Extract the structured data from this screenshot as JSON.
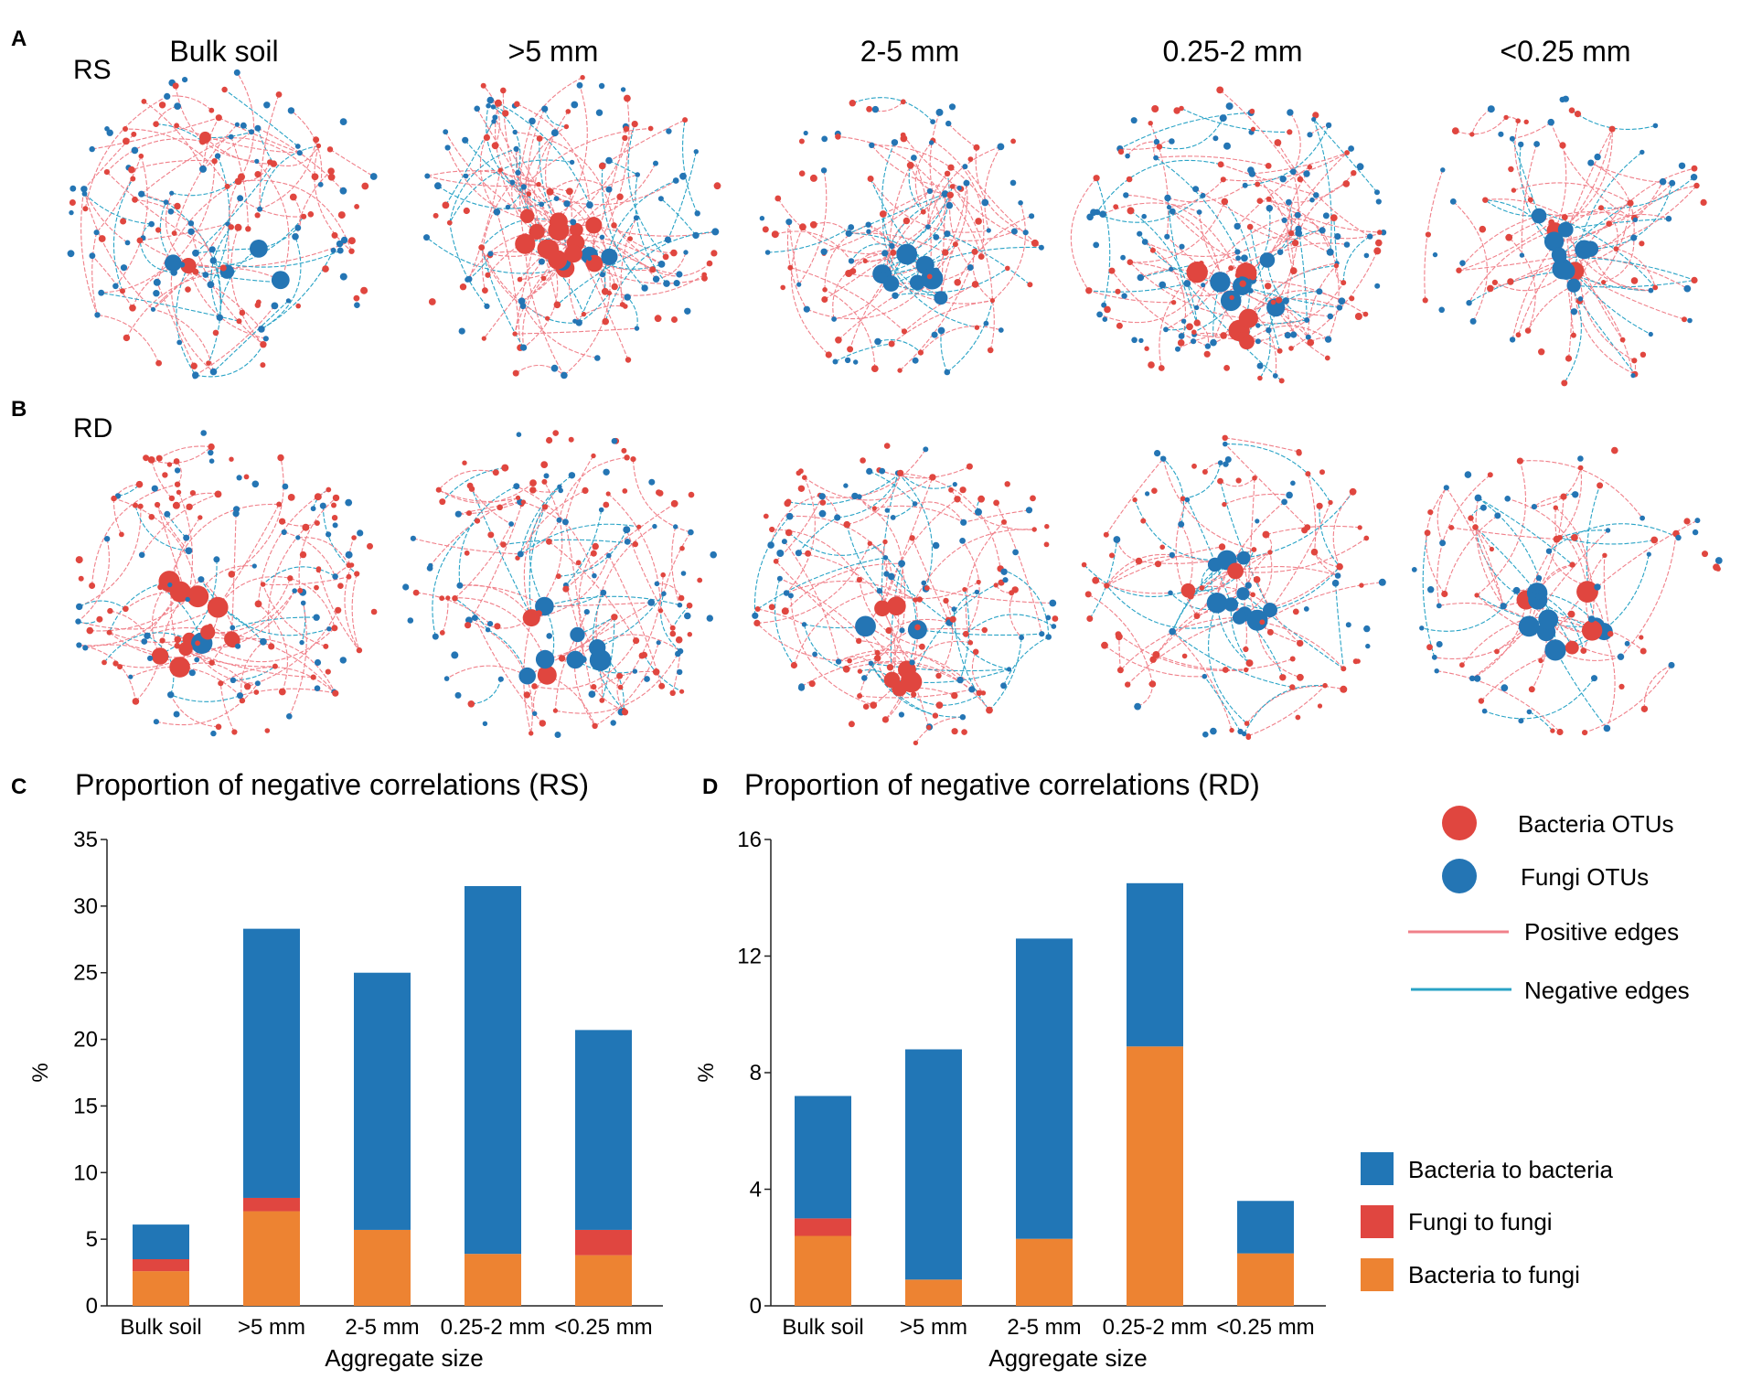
{
  "panel_letters": [
    "A",
    "B",
    "C",
    "D"
  ],
  "network_row_labels": [
    "RS",
    "RD"
  ],
  "network_column_titles": [
    "Bulk soil",
    ">5 mm",
    "2-5 mm",
    "0.25-2 mm",
    "<0.25 mm"
  ],
  "colors": {
    "bacteria_node": "#e0463f",
    "fungi_node": "#2475b4",
    "positive_edge": "#f0808a",
    "negative_edge": "#29a3c6",
    "bar_bacteria_to_bacteria": "#2176b6",
    "bar_fungi_to_fungi": "#e04640",
    "bar_bacteria_to_fungi": "#ed8332"
  },
  "network_legend": {
    "bacteria": "Bacteria OTUs",
    "fungi": "Fungi OTUs",
    "positive": "Positive edges",
    "negative": "Negative edges"
  },
  "bar_legend": [
    "Bacteria to bacteria",
    "Fungi to fungi",
    "Bacteria to fungi"
  ],
  "chart_data": [
    {
      "type": "bar",
      "stacked": true,
      "title": "Proportion of negative correlations (RS)",
      "xlabel": "Aggregate size",
      "ylabel": "%",
      "ylim": [
        0,
        35
      ],
      "yticks": [
        "0",
        "5",
        "10",
        "15",
        "20",
        "25",
        "30",
        "35"
      ],
      "categories": [
        "Bulk soil",
        ">5 mm",
        "2-5 mm",
        "0.25-2 mm",
        "<0.25 mm"
      ],
      "series": [
        {
          "name": "Bacteria to fungi",
          "values": [
            2.6,
            7.1,
            5.7,
            3.9,
            3.8
          ]
        },
        {
          "name": "Fungi to fungi",
          "values": [
            0.9,
            1.0,
            0,
            0,
            1.9
          ]
        },
        {
          "name": "Bacteria to bacteria",
          "values": [
            2.6,
            20.2,
            19.3,
            27.6,
            15.0
          ]
        }
      ]
    },
    {
      "type": "bar",
      "stacked": true,
      "title": "Proportion of negative correlations (RD)",
      "xlabel": "Aggregate size",
      "ylabel": "%",
      "ylim": [
        0,
        16
      ],
      "yticks": [
        "0",
        "4",
        "8",
        "12",
        "16"
      ],
      "categories": [
        "Bulk soil",
        ">5 mm",
        "2-5 mm",
        "0.25-2 mm",
        "<0.25 mm"
      ],
      "series": [
        {
          "name": "Bacteria to fungi",
          "values": [
            2.4,
            0.9,
            2.3,
            8.9,
            1.8
          ]
        },
        {
          "name": "Fungi to fungi",
          "values": [
            0.6,
            0,
            0,
            0,
            0
          ]
        },
        {
          "name": "Bacteria to bacteria",
          "values": [
            4.2,
            7.9,
            10.3,
            5.6,
            1.8
          ]
        }
      ]
    }
  ]
}
